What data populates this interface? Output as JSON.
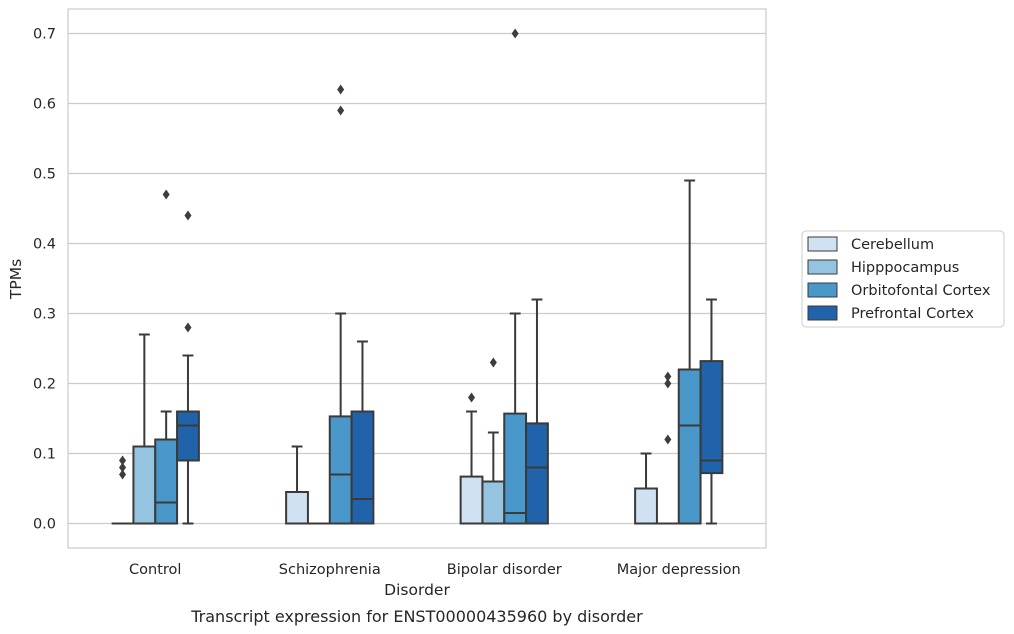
{
  "chart_data": {
    "type": "box",
    "xlabel": "Disorder",
    "ylabel": "TPMs",
    "caption": "Transcript expression for ENST00000435960 by disorder",
    "ylim": [
      -0.035,
      0.735
    ],
    "yticks": [
      0.0,
      0.1,
      0.2,
      0.3,
      0.4,
      0.5,
      0.6,
      0.7
    ],
    "ytick_labels": [
      "0.0",
      "0.1",
      "0.2",
      "0.3",
      "0.4",
      "0.5",
      "0.6",
      "0.7"
    ],
    "grid": "horizontal",
    "legend_position": "right",
    "categories": [
      "Control",
      "Schizophrenia",
      "Bipolar disorder",
      "Major depression"
    ],
    "series": [
      {
        "name": "Cerebellum",
        "color": "#d0e1f2",
        "boxes": [
          {
            "whislo": 0.0,
            "q1": 0.0,
            "med": 0.0,
            "q3": 0.0,
            "whishi": 0.0,
            "fliers": [
              0.07,
              0.08,
              0.09
            ]
          },
          {
            "whislo": 0.0,
            "q1": 0.0,
            "med": 0.0,
            "q3": 0.045,
            "whishi": 0.11,
            "fliers": []
          },
          {
            "whislo": 0.0,
            "q1": 0.0,
            "med": 0.0,
            "q3": 0.067,
            "whishi": 0.16,
            "fliers": [
              0.18
            ]
          },
          {
            "whislo": 0.0,
            "q1": 0.0,
            "med": 0.0,
            "q3": 0.05,
            "whishi": 0.1,
            "fliers": []
          }
        ]
      },
      {
        "name": "Hipppocampus",
        "color": "#94c4df",
        "boxes": [
          {
            "whislo": 0.0,
            "q1": 0.0,
            "med": 0.0,
            "q3": 0.11,
            "whishi": 0.27,
            "fliers": []
          },
          {
            "whislo": 0.0,
            "q1": 0.0,
            "med": 0.0,
            "q3": 0.0,
            "whishi": 0.0,
            "fliers": []
          },
          {
            "whislo": 0.0,
            "q1": 0.0,
            "med": 0.0,
            "q3": 0.06,
            "whishi": 0.13,
            "fliers": [
              0.23
            ]
          },
          {
            "whislo": 0.0,
            "q1": 0.0,
            "med": 0.0,
            "q3": 0.0,
            "whishi": 0.0,
            "fliers": [
              0.12,
              0.2,
              0.21
            ]
          }
        ]
      },
      {
        "name": "Orbitofontal Cortex",
        "color": "#4a98c9",
        "boxes": [
          {
            "whislo": 0.0,
            "q1": 0.0,
            "med": 0.03,
            "q3": 0.12,
            "whishi": 0.16,
            "fliers": [
              0.47
            ]
          },
          {
            "whislo": 0.0,
            "q1": 0.0,
            "med": 0.07,
            "q3": 0.153,
            "whishi": 0.3,
            "fliers": [
              0.59,
              0.62
            ]
          },
          {
            "whislo": 0.0,
            "q1": 0.0,
            "med": 0.015,
            "q3": 0.157,
            "whishi": 0.3,
            "fliers": [
              0.7
            ]
          },
          {
            "whislo": 0.0,
            "q1": 0.0,
            "med": 0.14,
            "q3": 0.22,
            "whishi": 0.49,
            "fliers": []
          }
        ]
      },
      {
        "name": "Prefrontal Cortex",
        "color": "#2163aa",
        "boxes": [
          {
            "whislo": 0.0,
            "q1": 0.09,
            "med": 0.14,
            "q3": 0.16,
            "whishi": 0.24,
            "fliers": [
              0.28,
              0.44
            ]
          },
          {
            "whislo": 0.0,
            "q1": 0.0,
            "med": 0.035,
            "q3": 0.16,
            "whishi": 0.26,
            "fliers": []
          },
          {
            "whislo": 0.0,
            "q1": 0.0,
            "med": 0.08,
            "q3": 0.143,
            "whishi": 0.32,
            "fliers": []
          },
          {
            "whislo": 0.0,
            "q1": 0.072,
            "med": 0.09,
            "q3": 0.232,
            "whishi": 0.32,
            "fliers": []
          }
        ]
      }
    ]
  }
}
